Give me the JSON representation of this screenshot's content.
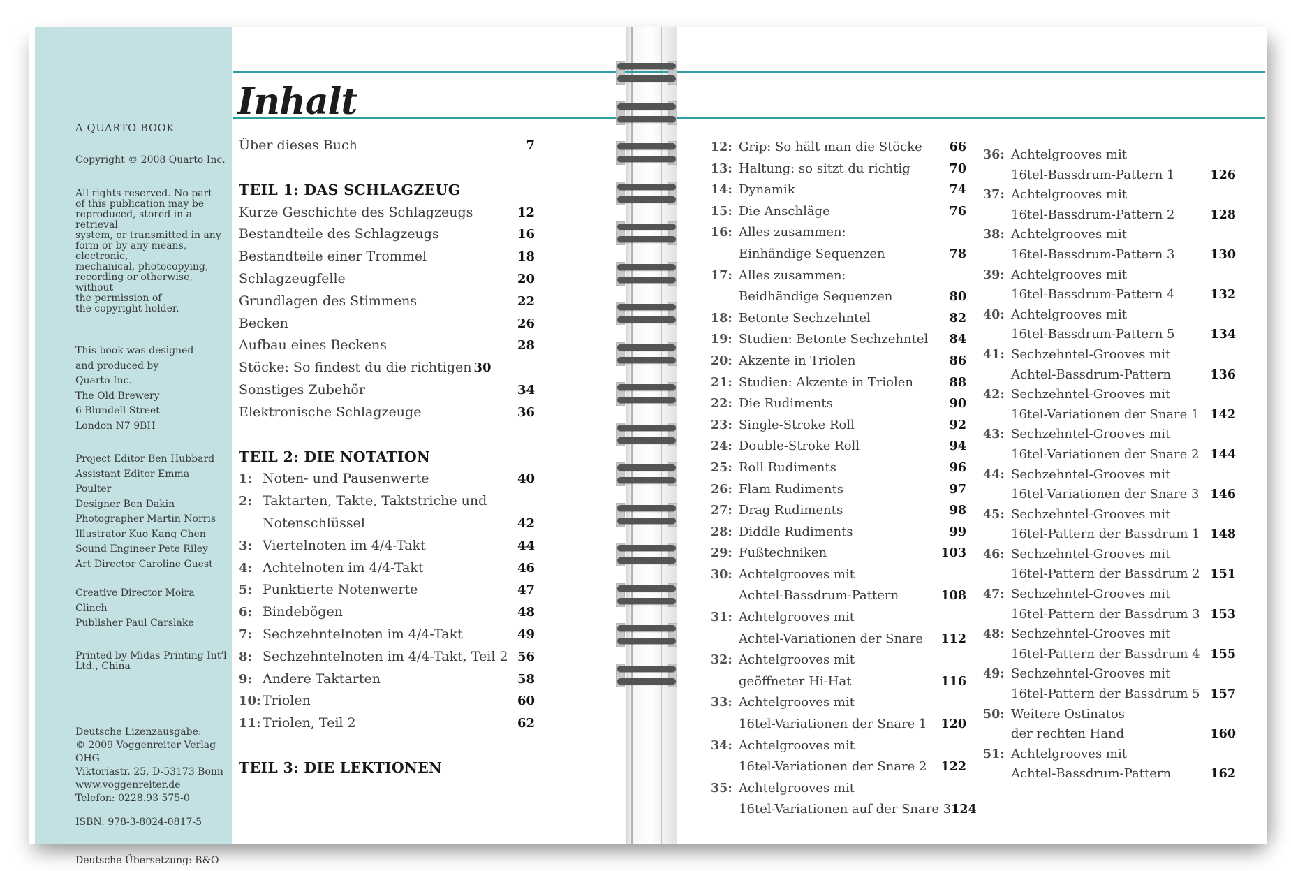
{
  "colors": {
    "sidebar_bg": "#c3e1e3",
    "rule_teal": "#2b9fa1",
    "coil_dark": "#545454",
    "clip_gray": "#c9c9c9"
  },
  "sidebar": {
    "blocks": [
      {
        "style": "caps",
        "lines": [
          "A QUARTO BOOK"
        ]
      },
      {
        "style": "tight",
        "lines": [
          "Copyright © 2008 Quarto Inc."
        ]
      },
      {
        "style": "tight",
        "lines": [
          "All rights reserved. No part",
          "of this publication may be",
          "reproduced, stored in a retrieval",
          "system, or transmitted in any",
          "form or by any means, electronic,",
          "mechanical, photocopying,",
          "recording or otherwise, without",
          "the permission of",
          "the copyright holder."
        ]
      },
      {
        "style": "list",
        "lines": [
          "This book was designed",
          "and produced by",
          "Quarto Inc.",
          "The Old Brewery",
          "6 Blundell Street",
          "London N7 9BH"
        ]
      },
      {
        "style": "list",
        "lines": [
          "Project Editor Ben Hubbard",
          "Assistant Editor Emma Poulter",
          "Designer Ben Dakin",
          "Photographer Martin Norris",
          "Illustrator Kuo Kang Chen",
          "Sound Engineer Pete Riley",
          "Art Director Caroline Guest"
        ]
      },
      {
        "style": "list",
        "lines": [
          "Creative Director Moira Clinch",
          "Publisher Paul Carslake"
        ]
      },
      {
        "style": "tight",
        "lines": [
          "Printed by Midas Printing Int'l",
          "Ltd., China"
        ]
      },
      {
        "style": "midlist",
        "lines": [
          "Deutsche Lizenzausgabe:",
          "© 2009 Voggenreiter Verlag OHG",
          "Viktoriastr. 25, D-53173 Bonn",
          "www.voggenreiter.de",
          "Telefon: 0228.93 575-0"
        ]
      },
      {
        "style": "tight",
        "lines": [
          "ISBN: 978-3-8024-0817-5"
        ]
      },
      {
        "style": "tight",
        "lines": [
          "Deutsche Übersetzung: B&O"
        ]
      }
    ]
  },
  "left_page": {
    "heading": "Inhalt",
    "front": {
      "lines": [
        "Über dieses Buch"
      ],
      "page": "7"
    },
    "sections": [
      {
        "header": "TEIL 1: DAS SCHLAGZEUG",
        "entries": [
          {
            "lines": [
              "Kurze Geschichte des Schlagzeugs"
            ],
            "page": "12"
          },
          {
            "lines": [
              "Bestandteile des Schlagzeugs"
            ],
            "page": "16"
          },
          {
            "lines": [
              "Bestandteile einer Trommel"
            ],
            "page": "18"
          },
          {
            "lines": [
              "Schlagzeugfelle"
            ],
            "page": "20"
          },
          {
            "lines": [
              "Grundlagen des Stimmens"
            ],
            "page": "22"
          },
          {
            "lines": [
              "Becken"
            ],
            "page": "26"
          },
          {
            "lines": [
              "Aufbau eines Beckens"
            ],
            "page": "28"
          },
          {
            "lines": [
              "Stöcke: So findest du die richtigen"
            ],
            "page": "30",
            "inline_page": true
          },
          {
            "lines": [
              "Sonstiges Zubehör"
            ],
            "page": "34"
          },
          {
            "lines": [
              "Elektronische Schlagzeuge"
            ],
            "page": "36"
          }
        ]
      },
      {
        "header": "TEIL 2: DIE NOTATION",
        "entries": [
          {
            "num": "1:",
            "lines": [
              "Noten- und Pausenwerte"
            ],
            "page": "40"
          },
          {
            "num": "2:",
            "lines": [
              "Taktarten, Takte, Taktstriche und",
              "Notenschlüssel"
            ],
            "page": "42"
          },
          {
            "num": "3:",
            "lines": [
              "Viertelnoten im 4/4-Takt"
            ],
            "page": "44"
          },
          {
            "num": "4:",
            "lines": [
              "Achtelnoten im 4/4-Takt"
            ],
            "page": "46"
          },
          {
            "num": "5:",
            "lines": [
              "Punktierte Notenwerte"
            ],
            "page": "47"
          },
          {
            "num": "6:",
            "lines": [
              "Bindebögen"
            ],
            "page": "48"
          },
          {
            "num": "7:",
            "lines": [
              "Sechzehntelnoten im 4/4-Takt"
            ],
            "page": "49"
          },
          {
            "num": "8:",
            "lines": [
              "Sechzehntelnoten im 4/4-Takt, Teil 2"
            ],
            "page": "56"
          },
          {
            "num": "9:",
            "lines": [
              "Andere Taktarten"
            ],
            "page": "58"
          },
          {
            "num": "10:",
            "lines": [
              "Triolen"
            ],
            "page": "60"
          },
          {
            "num": "11:",
            "lines": [
              "Triolen, Teil 2"
            ],
            "page": "62"
          }
        ]
      },
      {
        "header": "TEIL 3: DIE LEKTIONEN",
        "entries": []
      }
    ]
  },
  "right_page": {
    "columns": [
      {
        "entries": [
          {
            "num": "12:",
            "lines": [
              "Grip: So hält man die Stöcke"
            ],
            "page": "66"
          },
          {
            "num": "13:",
            "lines": [
              "Haltung: so sitzt du richtig"
            ],
            "page": "70"
          },
          {
            "num": "14:",
            "lines": [
              "Dynamik"
            ],
            "page": "74"
          },
          {
            "num": "15:",
            "lines": [
              "Die Anschläge"
            ],
            "page": "76"
          },
          {
            "num": "16:",
            "lines": [
              "Alles zusammen:",
              "Einhändige Sequenzen"
            ],
            "page": "78"
          },
          {
            "num": "17:",
            "lines": [
              "Alles zusammen:",
              "Beidhändige Sequenzen"
            ],
            "page": "80"
          },
          {
            "num": "18:",
            "lines": [
              "Betonte Sechzehntel"
            ],
            "page": "82"
          },
          {
            "num": "19:",
            "lines": [
              "Studien: Betonte Sechzehntel"
            ],
            "page": "84"
          },
          {
            "num": "20:",
            "lines": [
              "Akzente in Triolen"
            ],
            "page": "86"
          },
          {
            "num": "21:",
            "lines": [
              "Studien: Akzente in Triolen"
            ],
            "page": "88"
          },
          {
            "num": "22:",
            "lines": [
              "Die Rudiments"
            ],
            "page": "90"
          },
          {
            "num": "23:",
            "lines": [
              "Single-Stroke Roll"
            ],
            "page": "92"
          },
          {
            "num": "24:",
            "lines": [
              "Double-Stroke Roll"
            ],
            "page": "94"
          },
          {
            "num": "25:",
            "lines": [
              "Roll Rudiments"
            ],
            "page": "96"
          },
          {
            "num": "26:",
            "lines": [
              "Flam Rudiments"
            ],
            "page": "97"
          },
          {
            "num": "27:",
            "lines": [
              "Drag Rudiments"
            ],
            "page": "98"
          },
          {
            "num": "28:",
            "lines": [
              "Diddle Rudiments"
            ],
            "page": "99"
          },
          {
            "num": "29:",
            "lines": [
              "Fußtechniken"
            ],
            "page": "103"
          },
          {
            "num": "30:",
            "lines": [
              "Achtelgrooves mit",
              "Achtel-Bassdrum-Pattern"
            ],
            "page": "108"
          },
          {
            "num": "31:",
            "lines": [
              "Achtelgrooves mit",
              "Achtel-Variationen der Snare"
            ],
            "page": "112"
          },
          {
            "num": "32:",
            "lines": [
              "Achtelgrooves mit",
              "geöffneter Hi-Hat"
            ],
            "page": "116"
          },
          {
            "num": "33:",
            "lines": [
              "Achtelgrooves mit",
              "16tel-Variationen der Snare 1"
            ],
            "page": "120"
          },
          {
            "num": "34:",
            "lines": [
              "Achtelgrooves mit",
              "16tel-Variationen der Snare 2"
            ],
            "page": "122"
          },
          {
            "num": "35:",
            "lines": [
              "Achtelgrooves mit",
              "16tel-Variationen auf der Snare 3"
            ],
            "page": "124"
          }
        ]
      },
      {
        "entries": [
          {
            "num": "36:",
            "lines": [
              "Achtelgrooves mit",
              "16tel-Bassdrum-Pattern 1"
            ],
            "page": "126"
          },
          {
            "num": "37:",
            "lines": [
              "Achtelgrooves mit",
              "16tel-Bassdrum-Pattern 2"
            ],
            "page": "128"
          },
          {
            "num": "38:",
            "lines": [
              "Achtelgrooves mit",
              "16tel-Bassdrum-Pattern 3"
            ],
            "page": "130"
          },
          {
            "num": "39:",
            "lines": [
              "Achtelgrooves mit",
              "16tel-Bassdrum-Pattern 4"
            ],
            "page": "132"
          },
          {
            "num": "40:",
            "lines": [
              "Achtelgrooves mit",
              "16tel-Bassdrum-Pattern 5"
            ],
            "page": "134"
          },
          {
            "num": "41:",
            "lines": [
              "Sechzehntel-Grooves mit",
              "Achtel-Bassdrum-Pattern"
            ],
            "page": "136"
          },
          {
            "num": "42:",
            "lines": [
              "Sechzehntel-Grooves mit",
              "16tel-Variationen der Snare 1"
            ],
            "page": "142"
          },
          {
            "num": "43:",
            "lines": [
              "Sechzehntel-Grooves mit",
              "16tel-Variationen der Snare 2"
            ],
            "page": "144"
          },
          {
            "num": "44:",
            "lines": [
              "Sechzehntel-Grooves mit",
              "16tel-Variationen der Snare 3"
            ],
            "page": "146"
          },
          {
            "num": "45:",
            "lines": [
              "Sechzehntel-Grooves mit",
              "16tel-Pattern der Bassdrum 1"
            ],
            "page": "148"
          },
          {
            "num": "46:",
            "lines": [
              "Sechzehntel-Grooves mit",
              "16tel-Pattern der Bassdrum 2"
            ],
            "page": "151"
          },
          {
            "num": "47:",
            "lines": [
              "Sechzehntel-Grooves mit",
              "16tel-Pattern der Bassdrum 3"
            ],
            "page": "153"
          },
          {
            "num": "48:",
            "lines": [
              "Sechzehntel-Grooves mit",
              "16tel-Pattern der Bassdrum 4"
            ],
            "page": "155"
          },
          {
            "num": "49:",
            "lines": [
              "Sechzehntel-Grooves mit",
              "16tel-Pattern der Bassdrum 5"
            ],
            "page": "157"
          },
          {
            "num": "50:",
            "lines": [
              "Weitere Ostinatos",
              "der rechten Hand"
            ],
            "page": "160"
          },
          {
            "num": "51:",
            "lines": [
              "Achtelgrooves mit",
              "Achtel-Bassdrum-Pattern"
            ],
            "page": "162"
          }
        ]
      }
    ]
  }
}
